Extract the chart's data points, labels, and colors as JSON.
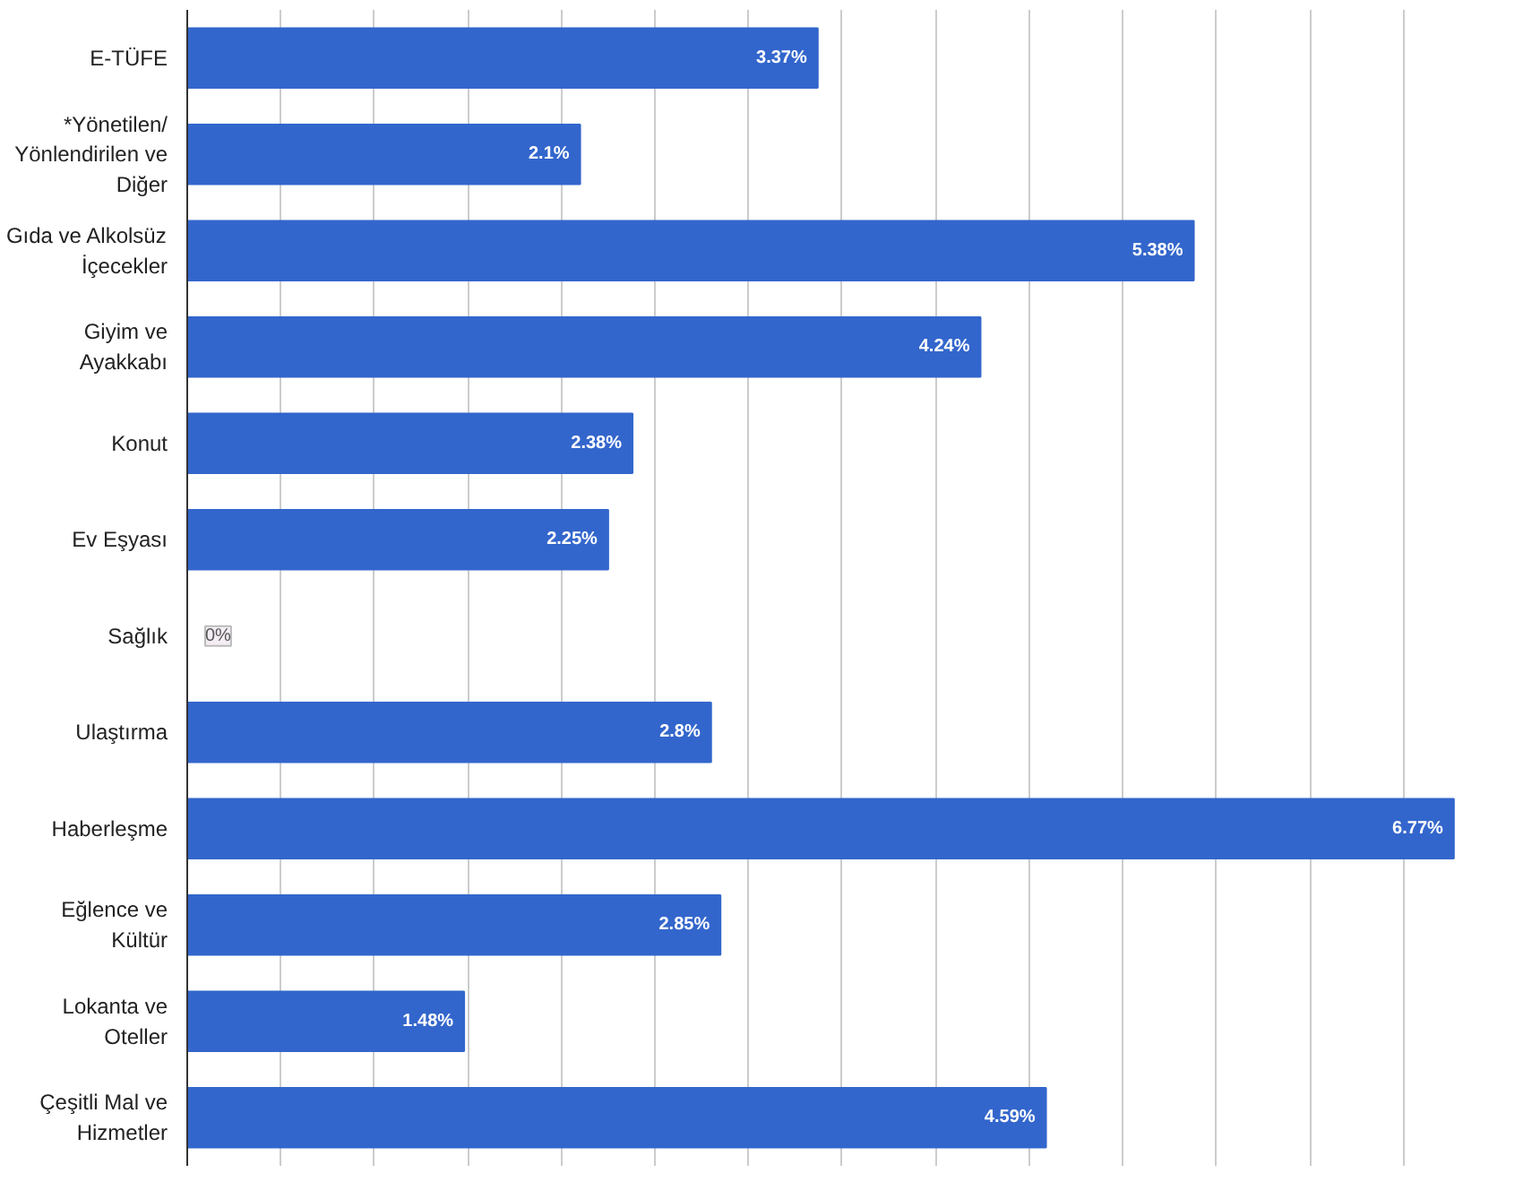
{
  "chart_data": {
    "type": "bar",
    "orientation": "horizontal",
    "categories": [
      "E-TÜFE",
      "*Yönetilen/ Yönlendirilen ve Diğer",
      "Gıda ve Alkolsüz İçecekler",
      "Giyim ve Ayakkabı",
      "Konut",
      "Ev Eşyası",
      "Sağlık",
      "Ulaştırma",
      "Haberleşme",
      "Eğlence ve Kültür",
      "Lokanta ve Oteller",
      "Çeşitli Mal ve Hizmetler"
    ],
    "values": [
      3.37,
      2.1,
      5.38,
      4.24,
      2.38,
      2.25,
      0,
      2.8,
      6.77,
      2.85,
      1.48,
      4.59
    ],
    "value_labels": [
      "3.37%",
      "2.1%",
      "5.38%",
      "4.24%",
      "2.38%",
      "2.25%",
      "0%",
      "2.8%",
      "6.77%",
      "2.85%",
      "1.48%",
      "4.59%"
    ],
    "color": "#3366cc",
    "xticks": [
      {
        "value": 0,
        "label": null
      },
      {
        "value": 0.5,
        "label": null
      },
      {
        "value": 1,
        "label": null
      },
      {
        "value": 1.5,
        "label": null
      },
      {
        "value": 2,
        "label": null
      },
      {
        "value": 2.5,
        "label": null
      },
      {
        "value": 3,
        "label": null
      },
      {
        "value": 3.5,
        "label": null
      },
      {
        "value": 4,
        "label": null
      },
      {
        "value": 4.5,
        "label": null
      },
      {
        "value": 5,
        "label": null
      },
      {
        "value": 5.5,
        "label": null
      },
      {
        "value": 6,
        "label": null
      },
      {
        "value": 6.5,
        "label": null
      }
    ],
    "tick_labels": "y",
    "grid": "x"
  }
}
